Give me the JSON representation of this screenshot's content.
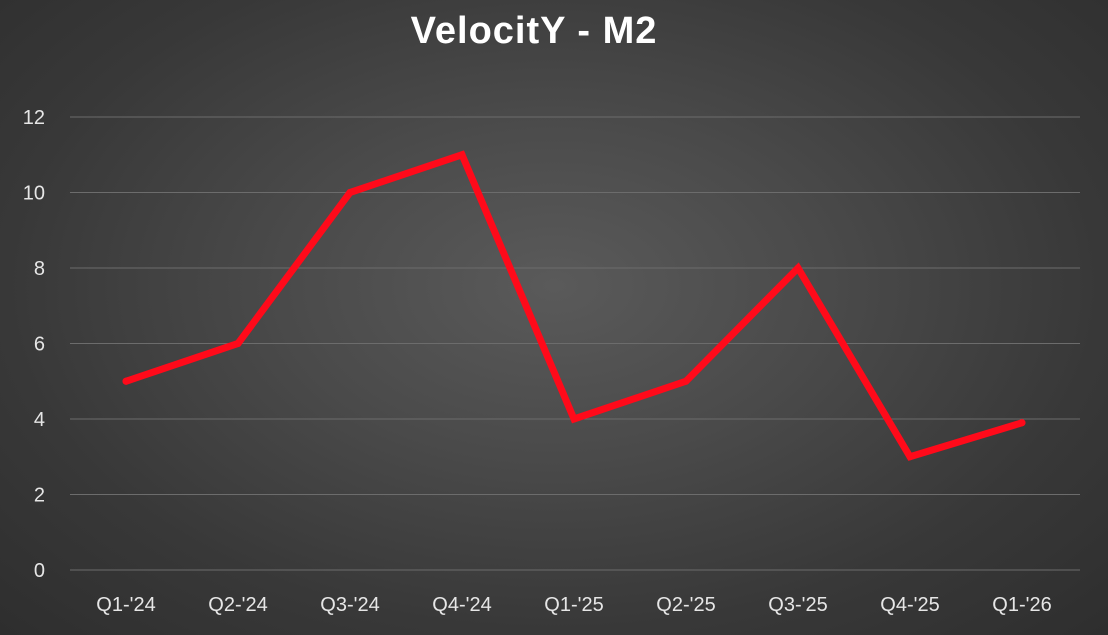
{
  "chart_data": {
    "type": "line",
    "title": "VelocitY - M2",
    "categories": [
      "Q1-'24",
      "Q2-'24",
      "Q3-'24",
      "Q4-'24",
      "Q1-'25",
      "Q2-'25",
      "Q3-'25",
      "Q4-'25",
      "Q1-'26"
    ],
    "series": [
      {
        "values": [
          5,
          6,
          10,
          11,
          4,
          5,
          8,
          3,
          3.9
        ],
        "color": "#ff0a1a"
      }
    ],
    "ylim": [
      0,
      12
    ],
    "yticks": [
      "0",
      "2",
      "4",
      "6",
      "8",
      "10",
      "12"
    ],
    "grid": true,
    "legend": "none"
  }
}
